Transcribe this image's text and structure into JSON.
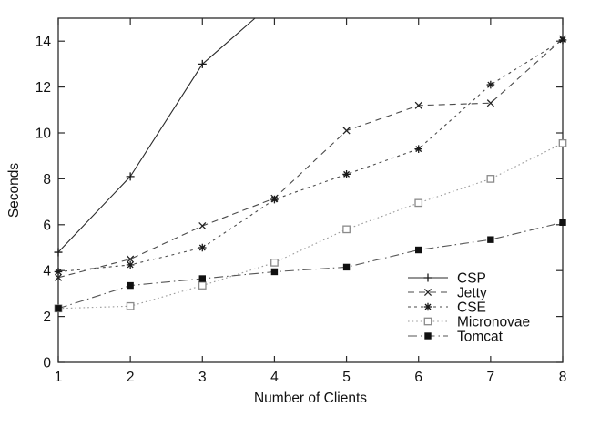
{
  "figure": {
    "background": "#ffffff",
    "frame_color": "#2b2b2b"
  },
  "chart_data": {
    "type": "line",
    "title": "",
    "xlabel": "Number of Clients",
    "ylabel": "Seconds",
    "xlim": [
      1,
      8
    ],
    "ylim": [
      0,
      15
    ],
    "x": [
      1,
      2,
      3,
      4,
      5,
      6,
      7,
      8
    ],
    "xticks": [
      "1",
      "2",
      "3",
      "4",
      "5",
      "6",
      "7",
      "8"
    ],
    "ytick_values": [
      0,
      2,
      4,
      6,
      8,
      10,
      12,
      14
    ],
    "yticks": [
      "0",
      "2",
      "4",
      "6",
      "8",
      "10",
      "12",
      "14"
    ],
    "grid": false,
    "legend_position": "inside-lower-right",
    "series": [
      {
        "name": "CSP",
        "marker": "plus",
        "line": "solid",
        "line_color": "#2a2a2a",
        "marker_color": "#1a1a1a",
        "values": [
          4.8,
          8.1,
          13.0,
          null,
          null,
          null,
          null,
          null
        ],
        "offscale_exit": {
          "x": 3.73,
          "y": 15.0
        }
      },
      {
        "name": "Jetty",
        "marker": "cross",
        "line": "dashed",
        "line_color": "#4a4a4a",
        "marker_color": "#242424",
        "values": [
          3.7,
          4.5,
          5.95,
          7.15,
          10.1,
          11.2,
          11.3,
          14.1
        ]
      },
      {
        "name": "CSE",
        "marker": "asterisk",
        "line": "short-dash",
        "line_color": "#4a4a4a",
        "marker_color": "#1a1a1a",
        "values": [
          3.95,
          4.25,
          5.0,
          7.1,
          8.2,
          9.3,
          12.1,
          14.05
        ]
      },
      {
        "name": "Micronovae",
        "marker": "open-square",
        "line": "dotted",
        "line_color": "#9a9a9a",
        "marker_color": "#8a8a8a",
        "values": [
          2.35,
          2.45,
          3.35,
          4.35,
          5.8,
          6.95,
          8.0,
          9.55
        ]
      },
      {
        "name": "Tomcat",
        "marker": "filled-square",
        "line": "dash-dot",
        "line_color": "#555555",
        "marker_color": "#101010",
        "values": [
          2.35,
          3.35,
          3.65,
          3.95,
          4.15,
          4.9,
          5.35,
          6.1
        ]
      }
    ]
  }
}
